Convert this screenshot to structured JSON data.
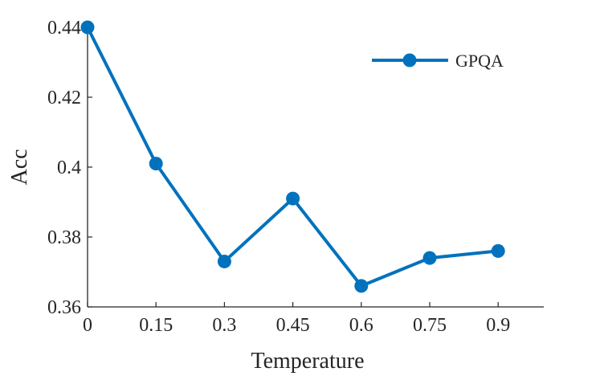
{
  "colors": {
    "series": "#0072bd",
    "axis": "#262626",
    "background": "#ffffff"
  },
  "chart_data": {
    "type": "line",
    "title": "",
    "xlabel": "Temperature",
    "ylabel": "Acc",
    "x": [
      0,
      0.15,
      0.3,
      0.45,
      0.6,
      0.75,
      0.9
    ],
    "x_tick_labels": [
      "0",
      "0.15",
      "0.3",
      "0.45",
      "0.6",
      "0.75",
      "0.9"
    ],
    "y_ticks": [
      0.36,
      0.38,
      0.4,
      0.42,
      0.44
    ],
    "y_tick_labels": [
      "0.36",
      "0.38",
      "0.4",
      "0.42",
      "0.44"
    ],
    "xlim": [
      0,
      1.0
    ],
    "ylim": [
      0.36,
      0.44
    ],
    "grid": false,
    "legend_position": "top-right",
    "series": [
      {
        "name": "GPQA",
        "values": [
          0.44,
          0.401,
          0.373,
          0.391,
          0.366,
          0.374,
          0.376
        ]
      }
    ]
  }
}
